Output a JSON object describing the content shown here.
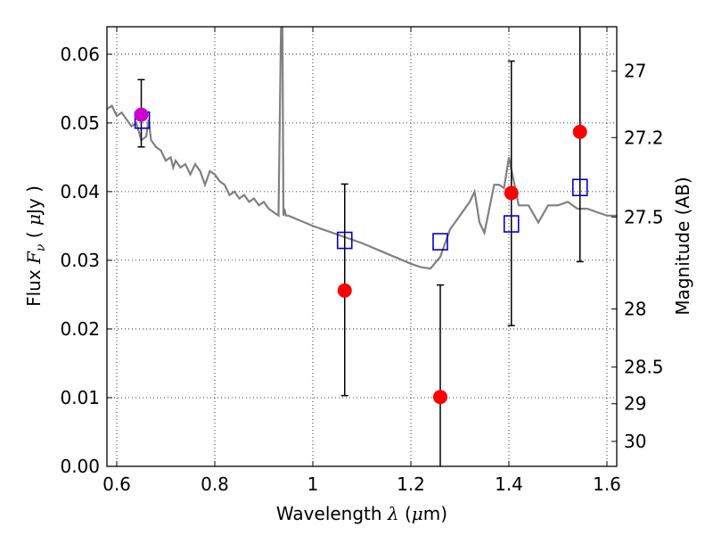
{
  "chart_data": {
    "type": "scatter",
    "xlabel": "Wavelength λ (μm)",
    "ylabel_left": "Flux F_ν ( μJy )",
    "ylabel_right": "Magnitude (AB)",
    "xlim": [
      0.58,
      1.62
    ],
    "ylim": [
      0.0,
      0.064
    ],
    "x_ticks": [
      0.6,
      0.8,
      1.0,
      1.2,
      1.4,
      1.6
    ],
    "x_tick_labels": [
      "0.6",
      "0.8",
      "1",
      "1.2",
      "1.4",
      "1.6"
    ],
    "y_ticks": [
      0.0,
      0.01,
      0.02,
      0.03,
      0.04,
      0.05,
      0.06
    ],
    "y_tick_labels": [
      "0.00",
      "0.01",
      "0.02",
      "0.03",
      "0.04",
      "0.05",
      "0.06"
    ],
    "right_ticks": [
      "27",
      "27.2",
      "27.5",
      "28",
      "28.5",
      "29",
      "30"
    ],
    "grid": true,
    "colors": {
      "template": "#808080",
      "observed": "#ff0000",
      "observed_first": "#cc00cc",
      "model": "#0000cc",
      "errorbar": "#000000",
      "grid": "#000000"
    },
    "series": [
      {
        "kind": "line",
        "color": "#808080",
        "x": [
          0.58,
          0.59,
          0.6,
          0.61,
          0.62,
          0.63,
          0.64,
          0.65,
          0.66,
          0.665,
          0.67,
          0.68,
          0.69,
          0.7,
          0.71,
          0.715,
          0.72,
          0.73,
          0.74,
          0.75,
          0.76,
          0.77,
          0.78,
          0.79,
          0.8,
          0.81,
          0.82,
          0.83,
          0.84,
          0.85,
          0.86,
          0.87,
          0.88,
          0.89,
          0.9,
          0.91,
          0.92,
          0.93,
          0.935,
          0.938,
          0.94,
          0.942,
          0.945,
          0.95,
          1.0,
          1.1,
          1.15,
          1.2,
          1.22,
          1.24,
          1.26,
          1.28,
          1.3,
          1.32,
          1.33,
          1.34,
          1.35,
          1.37,
          1.38,
          1.39,
          1.4,
          1.42,
          1.44,
          1.46,
          1.48,
          1.5,
          1.52,
          1.54,
          1.56,
          1.58,
          1.6,
          1.62
        ],
        "y": [
          0.052,
          0.0525,
          0.051,
          0.0515,
          0.0505,
          0.0495,
          0.05,
          0.0475,
          0.048,
          0.0505,
          0.0475,
          0.0465,
          0.046,
          0.0445,
          0.045,
          0.0435,
          0.0445,
          0.0435,
          0.044,
          0.0425,
          0.044,
          0.043,
          0.041,
          0.043,
          0.0425,
          0.0415,
          0.041,
          0.0395,
          0.04,
          0.039,
          0.0395,
          0.0385,
          0.039,
          0.038,
          0.0385,
          0.0375,
          0.037,
          0.0365,
          0.064,
          0.064,
          0.0365,
          0.0375,
          0.0365,
          0.0365,
          0.035,
          0.0325,
          0.031,
          0.0295,
          0.029,
          0.0288,
          0.0305,
          0.0345,
          0.0365,
          0.0385,
          0.04,
          0.0355,
          0.034,
          0.041,
          0.041,
          0.0405,
          0.045,
          0.038,
          0.038,
          0.0355,
          0.038,
          0.038,
          0.0385,
          0.0375,
          0.0375,
          0.037,
          0.0365,
          0.0365
        ]
      },
      {
        "kind": "points",
        "marker": "filled-circle",
        "color": "#ff0000",
        "x": [
          0.65,
          1.065,
          1.26,
          1.405,
          1.545
        ],
        "y": [
          0.0512,
          0.0256,
          0.0101,
          0.0398,
          0.0487
        ],
        "yerr_low": [
          0.0465,
          0.0103,
          0.0,
          0.0205,
          0.0298
        ],
        "yerr_high": [
          0.0563,
          0.0411,
          0.0264,
          0.059,
          0.064
        ]
      },
      {
        "kind": "points",
        "marker": "open-square",
        "color": "#0000cc",
        "x": [
          0.652,
          1.065,
          1.26,
          1.405,
          1.545
        ],
        "y": [
          0.0504,
          0.0329,
          0.0327,
          0.0353,
          0.0406
        ]
      }
    ]
  }
}
